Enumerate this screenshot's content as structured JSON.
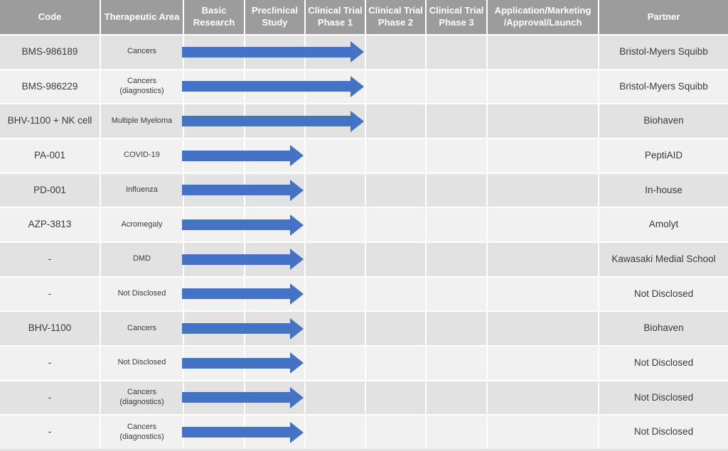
{
  "colors": {
    "header_bg": "#9c9c9c",
    "row_dark": "#e2e2e2",
    "row_light": "#f1f1f1",
    "arrow_blue": "#4472c4",
    "gridline": "#ffffff",
    "header_text": "#ffffff",
    "body_text": "#3a3a3a"
  },
  "table": {
    "columns": [
      {
        "label": "Code"
      },
      {
        "label": "Therapeutic Area"
      },
      {
        "label": "Basic\nResearch"
      },
      {
        "label": "Preclinical\nStudy"
      },
      {
        "label": "Clinical Trial\nPhase 1"
      },
      {
        "label": "Clinical Trial\nPhase 2"
      },
      {
        "label": "Clinical Trial\nPhase 3"
      },
      {
        "label": "Application/Marketing\n/Approval/Launch"
      },
      {
        "label": "Partner"
      }
    ],
    "rows": [
      {
        "code": "BMS-986189",
        "therapeutic_area": "Cancers",
        "progress_stage": "Clinical Trial Phase 1",
        "partner": "Bristol-Myers Squibb"
      },
      {
        "code": "BMS-986229",
        "therapeutic_area": "Cancers (diagnostics)",
        "progress_stage": "Clinical Trial Phase 1",
        "partner": "Bristol-Myers Squibb"
      },
      {
        "code": "BHV-1100 + NK cell",
        "therapeutic_area": "Multiple Myeloma",
        "progress_stage": "Clinical Trial Phase 1",
        "partner": "Biohaven"
      },
      {
        "code": "PA-001",
        "therapeutic_area": "COVID-19",
        "progress_stage": "Preclinical Study",
        "partner": "PeptiAID"
      },
      {
        "code": "PD-001",
        "therapeutic_area": "Influenza",
        "progress_stage": "Preclinical Study",
        "partner": "In-house"
      },
      {
        "code": "AZP-3813",
        "therapeutic_area": "Acromegaly",
        "progress_stage": "Preclinical Study",
        "partner": "Amolyt"
      },
      {
        "code": "-",
        "therapeutic_area": "DMD",
        "progress_stage": "Preclinical Study",
        "partner": "Kawasaki Medial School"
      },
      {
        "code": "-",
        "therapeutic_area": "Not Disclosed",
        "progress_stage": "Preclinical Study",
        "partner": "Not Disclosed"
      },
      {
        "code": "BHV-1100",
        "therapeutic_area": "Cancers",
        "progress_stage": "Preclinical Study",
        "partner": "Biohaven"
      },
      {
        "code": "-",
        "therapeutic_area": "Not Disclosed",
        "progress_stage": "Preclinical Study",
        "partner": "Not Disclosed"
      },
      {
        "code": "-",
        "therapeutic_area": "Cancers (diagnostics)",
        "progress_stage": "Preclinical Study",
        "partner": "Not Disclosed"
      },
      {
        "code": "-",
        "therapeutic_area": "Cancers (diagnostics)",
        "progress_stage": "Preclinical Study",
        "partner": "Not Disclosed"
      }
    ]
  }
}
